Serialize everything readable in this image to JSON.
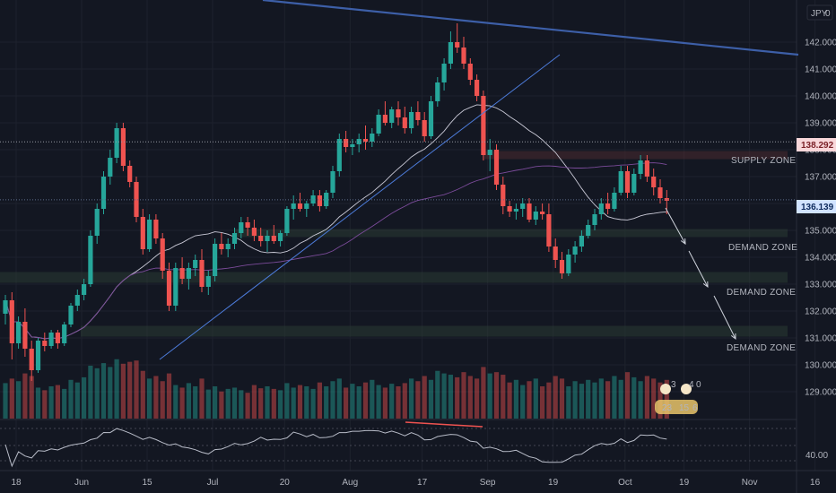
{
  "currency": "JPY",
  "currency_flag": "0",
  "price_labels": {
    "high_line": "138.292",
    "last_price": "136.139"
  },
  "zones": {
    "supply": "SUPPLY ZONE",
    "demand_1": "DEMAND ZONE",
    "demand_2": "DEMAND ZONE",
    "demand_3": "DEMAND ZONE"
  },
  "badges": {
    "row1_a": "3",
    "row1_b": "4",
    "row1_c": "0",
    "row2_a": "23",
    "row2_b": "15",
    "row2_c": "6"
  },
  "colors": {
    "background": "#131722",
    "up": "#26a69a",
    "down": "#ef5350",
    "trendline": "#3d5fa8",
    "zone": "#2a3b33",
    "supply_zone": "#4a2a30"
  },
  "chart_data": {
    "type": "candlestick",
    "y_axis": {
      "ticks": [
        142.0,
        141.0,
        140.0,
        139.0,
        138.0,
        137.0,
        136.0,
        135.0,
        134.0,
        133.0,
        132.0,
        131.0,
        130.0,
        129.0
      ],
      "tick_labels": [
        "142.000",
        "141.000",
        "140.000",
        "139.000",
        "138.000",
        "137.000",
        "136.000",
        "135.000",
        "134.000",
        "133.000",
        "132.000",
        "131.000",
        "130.000",
        "129.000"
      ],
      "range": [
        128.4,
        143.0
      ],
      "position": "right"
    },
    "x_axis": {
      "tick_labels": [
        "18",
        "Jun",
        "15",
        "Jul",
        "20",
        "Aug",
        "17",
        "Sep",
        "19",
        "Oct",
        "19",
        "Nov",
        "16"
      ],
      "tick_index": [
        0,
        10,
        20,
        30,
        41,
        51,
        62,
        72,
        82,
        93,
        102,
        112,
        122
      ]
    },
    "candles": [
      [
        131.9,
        132.6,
        131.5,
        132.4
      ],
      [
        132.4,
        132.7,
        130.2,
        130.8
      ],
      [
        130.8,
        131.8,
        130.6,
        131.6
      ],
      [
        131.6,
        132.1,
        130.3,
        130.6
      ],
      [
        130.6,
        130.9,
        129.4,
        129.8
      ],
      [
        129.8,
        131.0,
        129.7,
        130.9
      ],
      [
        130.9,
        131.2,
        130.5,
        130.7
      ],
      [
        130.7,
        131.3,
        130.6,
        131.2
      ],
      [
        131.2,
        131.3,
        130.6,
        130.8
      ],
      [
        130.8,
        131.6,
        130.7,
        131.5
      ],
      [
        131.5,
        132.3,
        131.4,
        132.2
      ],
      [
        132.2,
        132.8,
        132.0,
        132.6
      ],
      [
        132.6,
        133.2,
        132.4,
        133.0
      ],
      [
        133.0,
        135.0,
        132.9,
        134.8
      ],
      [
        134.8,
        136.0,
        134.5,
        135.8
      ],
      [
        135.8,
        137.2,
        135.6,
        137.0
      ],
      [
        137.0,
        138.0,
        136.7,
        137.7
      ],
      [
        137.7,
        139.0,
        137.5,
        138.8
      ],
      [
        138.8,
        139.0,
        137.2,
        137.4
      ],
      [
        137.4,
        137.6,
        136.6,
        136.8
      ],
      [
        136.8,
        137.0,
        135.3,
        135.5
      ],
      [
        135.5,
        135.8,
        134.1,
        134.3
      ],
      [
        134.3,
        135.6,
        134.2,
        135.4
      ],
      [
        135.4,
        135.6,
        134.5,
        134.7
      ],
      [
        134.7,
        134.9,
        133.2,
        133.5
      ],
      [
        133.5,
        133.8,
        132.0,
        132.2
      ],
      [
        132.2,
        133.8,
        132.0,
        133.6
      ],
      [
        133.6,
        134.0,
        133.0,
        133.2
      ],
      [
        133.2,
        133.8,
        132.8,
        133.6
      ],
      [
        133.6,
        134.1,
        133.3,
        133.9
      ],
      [
        133.9,
        134.3,
        132.7,
        132.9
      ],
      [
        132.9,
        133.5,
        132.6,
        133.3
      ],
      [
        133.3,
        134.7,
        133.1,
        134.5
      ],
      [
        134.5,
        134.9,
        134.1,
        134.3
      ],
      [
        134.3,
        134.7,
        134.0,
        134.5
      ],
      [
        134.5,
        135.1,
        134.3,
        134.9
      ],
      [
        134.9,
        135.5,
        134.7,
        135.3
      ],
      [
        135.3,
        135.5,
        134.8,
        135.1
      ],
      [
        135.1,
        135.4,
        134.6,
        134.8
      ],
      [
        134.8,
        135.1,
        134.4,
        134.6
      ],
      [
        134.6,
        135.0,
        134.2,
        134.8
      ],
      [
        134.8,
        135.2,
        134.5,
        134.6
      ],
      [
        134.6,
        135.0,
        134.4,
        134.9
      ],
      [
        134.9,
        135.9,
        134.8,
        135.8
      ],
      [
        135.8,
        136.3,
        135.4,
        136.0
      ],
      [
        136.0,
        136.4,
        135.7,
        135.8
      ],
      [
        135.8,
        136.1,
        135.5,
        136.0
      ],
      [
        136.0,
        136.5,
        135.9,
        136.3
      ],
      [
        136.3,
        136.5,
        135.7,
        135.9
      ],
      [
        135.9,
        136.5,
        135.8,
        136.4
      ],
      [
        136.4,
        137.4,
        136.2,
        137.2
      ],
      [
        137.2,
        138.6,
        137.0,
        138.4
      ],
      [
        138.4,
        138.7,
        137.9,
        138.1
      ],
      [
        138.1,
        138.4,
        137.8,
        138.2
      ],
      [
        138.2,
        138.6,
        137.9,
        138.4
      ],
      [
        138.4,
        138.9,
        138.0,
        138.3
      ],
      [
        138.3,
        138.8,
        138.1,
        138.6
      ],
      [
        138.6,
        139.5,
        138.5,
        139.3
      ],
      [
        139.3,
        139.8,
        138.9,
        139.0
      ],
      [
        139.0,
        139.6,
        138.8,
        139.5
      ],
      [
        139.5,
        139.8,
        138.9,
        139.2
      ],
      [
        139.2,
        139.6,
        138.6,
        138.8
      ],
      [
        138.8,
        139.6,
        138.6,
        139.4
      ],
      [
        139.4,
        139.8,
        138.9,
        139.1
      ],
      [
        139.1,
        139.4,
        138.3,
        138.5
      ],
      [
        138.5,
        140.0,
        138.4,
        139.8
      ],
      [
        139.8,
        140.7,
        139.6,
        140.5
      ],
      [
        140.5,
        141.4,
        140.2,
        141.2
      ],
      [
        141.2,
        142.4,
        141.0,
        142.0
      ],
      [
        142.0,
        142.7,
        141.6,
        141.8
      ],
      [
        141.8,
        142.2,
        141.0,
        141.2
      ],
      [
        141.2,
        141.4,
        140.4,
        140.6
      ],
      [
        140.6,
        140.8,
        139.8,
        140.0
      ],
      [
        140.0,
        140.2,
        137.6,
        137.8
      ],
      [
        137.8,
        138.4,
        137.2,
        138.0
      ],
      [
        138.0,
        138.2,
        136.5,
        136.7
      ],
      [
        136.7,
        137.0,
        135.6,
        135.9
      ],
      [
        135.9,
        136.1,
        135.5,
        135.7
      ],
      [
        135.7,
        136.0,
        135.4,
        135.8
      ],
      [
        135.8,
        136.2,
        135.5,
        136.0
      ],
      [
        136.0,
        136.2,
        135.3,
        135.4
      ],
      [
        135.4,
        135.9,
        135.2,
        135.7
      ],
      [
        135.7,
        136.0,
        135.4,
        135.6
      ],
      [
        135.6,
        136.0,
        134.2,
        134.4
      ],
      [
        134.4,
        134.7,
        133.6,
        133.9
      ],
      [
        133.9,
        134.2,
        133.2,
        133.4
      ],
      [
        133.4,
        134.3,
        133.3,
        134.1
      ],
      [
        134.1,
        134.6,
        133.8,
        134.4
      ],
      [
        134.4,
        135.0,
        134.2,
        134.8
      ],
      [
        134.8,
        135.4,
        134.7,
        135.2
      ],
      [
        135.2,
        135.8,
        135.0,
        135.6
      ],
      [
        135.6,
        136.2,
        135.4,
        136.0
      ],
      [
        136.0,
        136.4,
        135.6,
        135.8
      ],
      [
        135.8,
        136.6,
        135.7,
        136.4
      ],
      [
        136.4,
        137.4,
        136.3,
        137.2
      ],
      [
        137.2,
        137.4,
        136.2,
        136.4
      ],
      [
        136.4,
        137.3,
        136.3,
        137.1
      ],
      [
        137.1,
        137.8,
        136.9,
        137.6
      ],
      [
        137.6,
        137.8,
        136.8,
        137.0
      ],
      [
        137.0,
        137.3,
        136.3,
        136.6
      ],
      [
        136.6,
        136.9,
        136.0,
        136.2
      ],
      [
        136.2,
        136.5,
        135.6,
        136.1
      ]
    ],
    "volume": [
      0.55,
      0.62,
      0.58,
      0.7,
      0.66,
      0.48,
      0.44,
      0.5,
      0.52,
      0.46,
      0.6,
      0.56,
      0.64,
      0.82,
      0.78,
      0.86,
      0.8,
      0.92,
      0.85,
      0.88,
      0.9,
      0.74,
      0.62,
      0.66,
      0.58,
      0.7,
      0.52,
      0.48,
      0.55,
      0.5,
      0.62,
      0.45,
      0.5,
      0.42,
      0.46,
      0.48,
      0.44,
      0.4,
      0.52,
      0.47,
      0.5,
      0.46,
      0.44,
      0.55,
      0.48,
      0.52,
      0.5,
      0.46,
      0.56,
      0.5,
      0.58,
      0.62,
      0.48,
      0.54,
      0.5,
      0.56,
      0.6,
      0.52,
      0.48,
      0.54,
      0.5,
      0.55,
      0.62,
      0.58,
      0.66,
      0.6,
      0.74,
      0.7,
      0.68,
      0.64,
      0.72,
      0.66,
      0.62,
      0.8,
      0.7,
      0.72,
      0.68,
      0.56,
      0.6,
      0.52,
      0.58,
      0.62,
      0.5,
      0.56,
      0.66,
      0.62,
      0.5,
      0.58,
      0.54,
      0.6,
      0.56,
      0.62,
      0.58,
      0.66,
      0.6,
      0.72,
      0.64,
      0.58,
      0.66,
      0.62,
      0.56,
      0.6
    ],
    "rsi_y_label": "40.00"
  }
}
